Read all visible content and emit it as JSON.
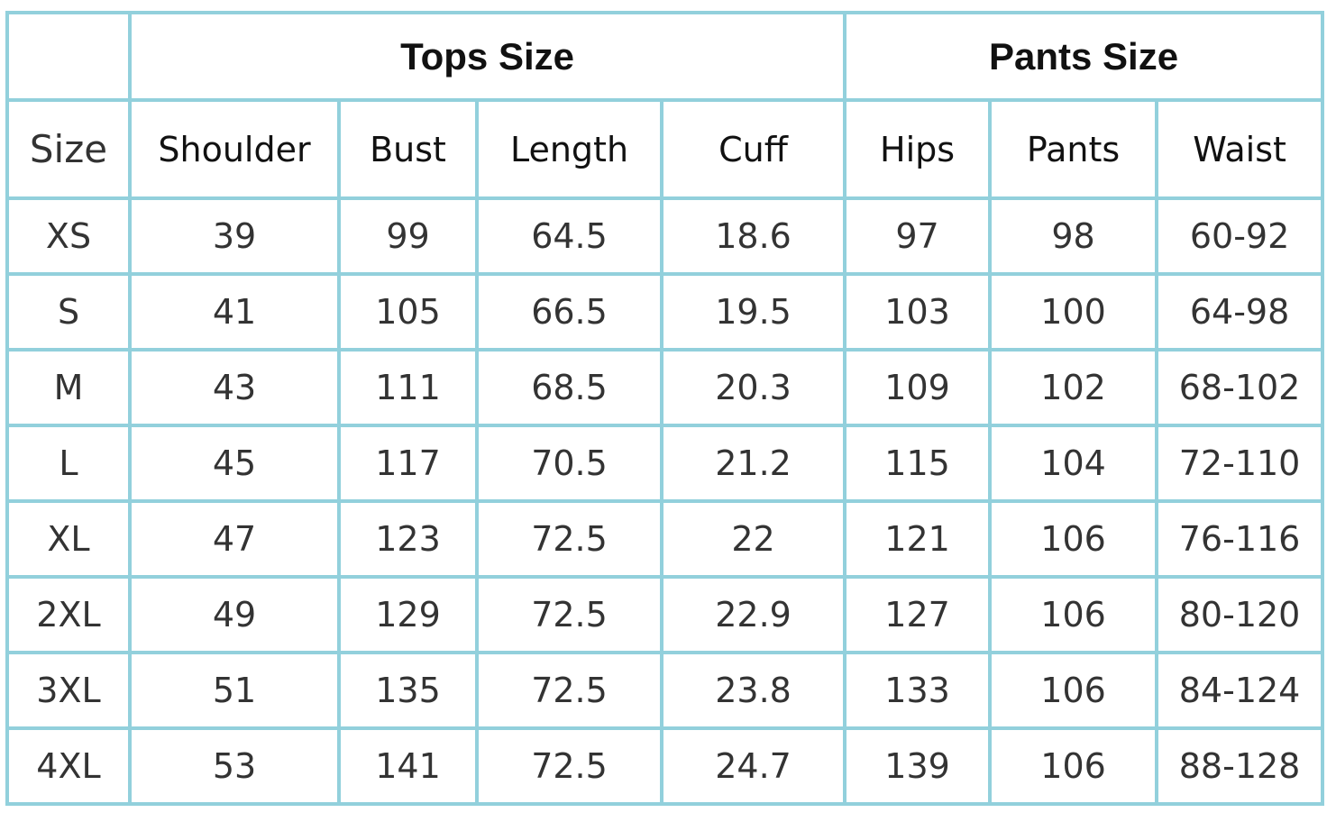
{
  "groups": {
    "tops": "Tops Size",
    "pants": "Pants Size"
  },
  "columns": [
    "Size",
    "Shoulder",
    "Bust",
    "Length",
    "Cuff",
    "Hips",
    "Pants",
    "Waist"
  ],
  "rows": [
    [
      "XS",
      "39",
      "99",
      "64.5",
      "18.6",
      "97",
      "98",
      "60-92"
    ],
    [
      "S",
      "41",
      "105",
      "66.5",
      "19.5",
      "103",
      "100",
      "64-98"
    ],
    [
      "M",
      "43",
      "111",
      "68.5",
      "20.3",
      "109",
      "102",
      "68-102"
    ],
    [
      "L",
      "45",
      "117",
      "70.5",
      "21.2",
      "115",
      "104",
      "72-110"
    ],
    [
      "XL",
      "47",
      "123",
      "72.5",
      "22",
      "121",
      "106",
      "76-116"
    ],
    [
      "2XL",
      "49",
      "129",
      "72.5",
      "22.9",
      "127",
      "106",
      "80-120"
    ],
    [
      "3XL",
      "51",
      "135",
      "72.5",
      "23.8",
      "133",
      "106",
      "84-124"
    ],
    [
      "4XL",
      "53",
      "141",
      "72.5",
      "24.7",
      "139",
      "106",
      "88-128"
    ]
  ],
  "colors": {
    "border": "#92d0dc"
  }
}
